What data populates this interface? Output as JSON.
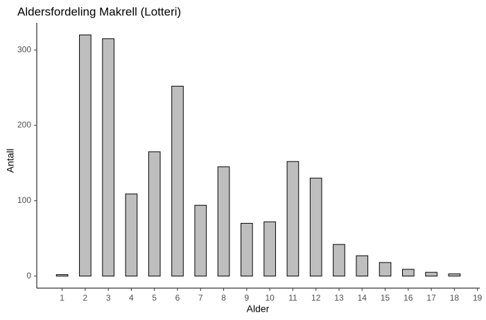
{
  "chart_data": {
    "type": "bar",
    "title": "Aldersfordeling Makrell (Lotteri)",
    "x_label": "Alder",
    "y_label": "Antall",
    "x": [
      1,
      2,
      3,
      4,
      5,
      6,
      7,
      8,
      9,
      10,
      11,
      12,
      13,
      14,
      15,
      16,
      17,
      18
    ],
    "values": [
      2,
      320,
      315,
      109,
      165,
      252,
      94,
      145,
      70,
      72,
      152,
      130,
      42,
      27,
      18,
      9,
      5,
      3
    ],
    "color": "#bebebe",
    "edge_color": "#000000",
    "xlim": [
      -0.1,
      19.1
    ],
    "xticks": [
      1,
      2,
      3,
      4,
      5,
      6,
      7,
      8,
      9,
      10,
      11,
      12,
      13,
      14,
      15,
      16,
      17,
      18,
      19
    ],
    "ylim": [
      -16,
      336
    ],
    "yticks": [
      0,
      100,
      200,
      300
    ],
    "grid": false
  }
}
